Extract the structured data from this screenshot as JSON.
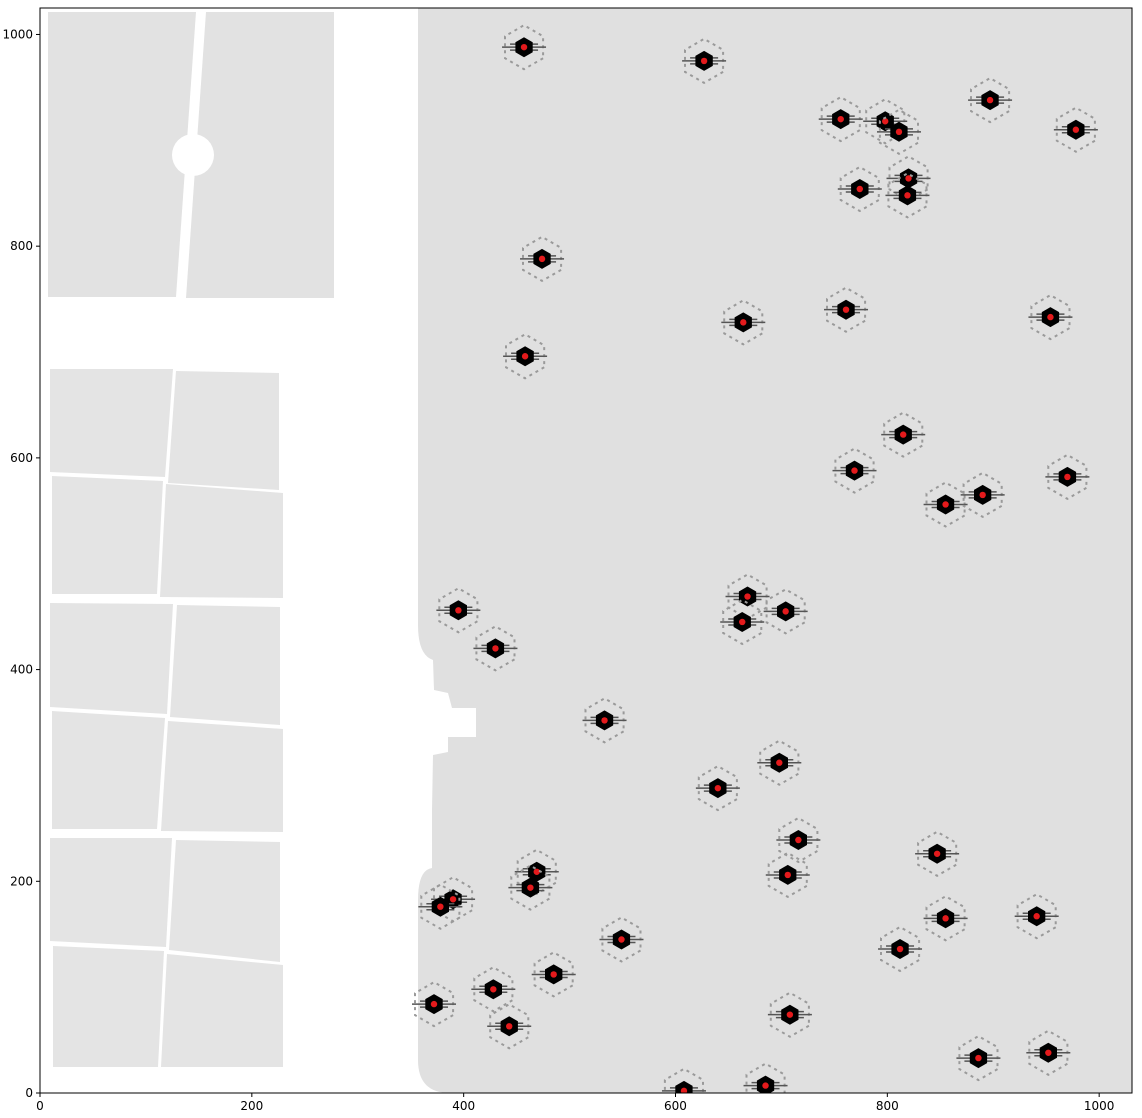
{
  "axes": {
    "x_ticks": [
      "0",
      "200",
      "400",
      "600",
      "800",
      "1000"
    ],
    "y_ticks": [
      "0",
      "200",
      "400",
      "600",
      "800",
      "1000"
    ],
    "xlim": [
      0,
      1031
    ],
    "ylim": [
      0,
      1025
    ]
  },
  "colors": {
    "background": "#e0e0e0",
    "star": "#000000",
    "marker": "#e41a1c",
    "panel": "#e2e2e2"
  },
  "sources": [
    {
      "x": 457,
      "y": 988
    },
    {
      "x": 627,
      "y": 975
    },
    {
      "x": 897,
      "y": 938
    },
    {
      "x": 756,
      "y": 920
    },
    {
      "x": 798,
      "y": 918
    },
    {
      "x": 811,
      "y": 908
    },
    {
      "x": 978,
      "y": 910
    },
    {
      "x": 820,
      "y": 864
    },
    {
      "x": 774,
      "y": 854
    },
    {
      "x": 819,
      "y": 848
    },
    {
      "x": 474,
      "y": 788
    },
    {
      "x": 664,
      "y": 728
    },
    {
      "x": 761,
      "y": 740
    },
    {
      "x": 954,
      "y": 733
    },
    {
      "x": 458,
      "y": 696
    },
    {
      "x": 815,
      "y": 622
    },
    {
      "x": 769,
      "y": 588
    },
    {
      "x": 970,
      "y": 582
    },
    {
      "x": 855,
      "y": 556
    },
    {
      "x": 890,
      "y": 565
    },
    {
      "x": 668,
      "y": 469
    },
    {
      "x": 663,
      "y": 445
    },
    {
      "x": 704,
      "y": 455
    },
    {
      "x": 395,
      "y": 456
    },
    {
      "x": 430,
      "y": 420
    },
    {
      "x": 533,
      "y": 352
    },
    {
      "x": 698,
      "y": 312
    },
    {
      "x": 640,
      "y": 288
    },
    {
      "x": 716,
      "y": 239
    },
    {
      "x": 706,
      "y": 206
    },
    {
      "x": 847,
      "y": 226
    },
    {
      "x": 469,
      "y": 209
    },
    {
      "x": 463,
      "y": 194
    },
    {
      "x": 390,
      "y": 183
    },
    {
      "x": 378,
      "y": 176
    },
    {
      "x": 855,
      "y": 165
    },
    {
      "x": 941,
      "y": 167
    },
    {
      "x": 549,
      "y": 145
    },
    {
      "x": 812,
      "y": 136
    },
    {
      "x": 485,
      "y": 112
    },
    {
      "x": 428,
      "y": 98
    },
    {
      "x": 372,
      "y": 84
    },
    {
      "x": 443,
      "y": 63
    },
    {
      "x": 708,
      "y": 74
    },
    {
      "x": 952,
      "y": 38
    },
    {
      "x": 886,
      "y": 33
    },
    {
      "x": 685,
      "y": 7
    },
    {
      "x": 608,
      "y": 2
    }
  ]
}
